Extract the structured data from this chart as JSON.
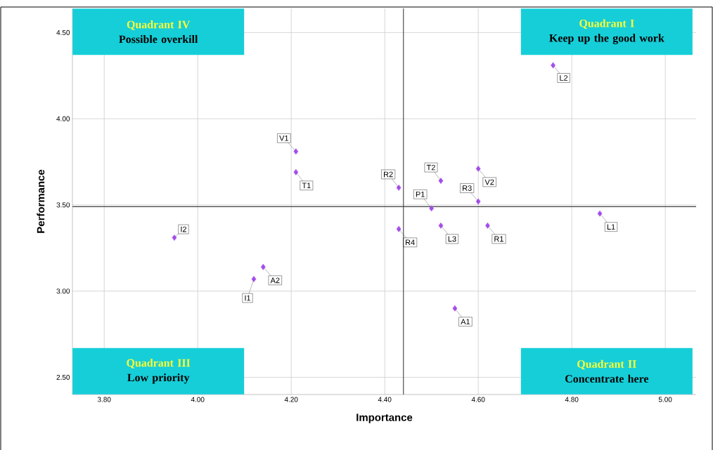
{
  "chart_data": {
    "type": "scatter",
    "xlabel": "Importance",
    "ylabel": "Performance",
    "x": [
      4.76,
      4.21,
      4.21,
      4.43,
      4.52,
      4.6,
      4.6,
      4.5,
      4.52,
      4.62,
      4.43,
      4.86,
      3.95,
      4.14,
      4.12,
      4.55
    ],
    "values": [
      4.31,
      3.81,
      3.69,
      3.6,
      3.64,
      3.71,
      3.52,
      3.48,
      3.38,
      3.38,
      3.36,
      3.45,
      3.31,
      3.14,
      3.07,
      2.9
    ],
    "color": "#a64ff0",
    "marker": "diamond",
    "grid": true,
    "xlim": [
      3.732,
      5.066
    ],
    "ylim": [
      2.4,
      4.64
    ],
    "xticks": [
      {
        "value": 3.8,
        "label": "3.80"
      },
      {
        "value": 4.0,
        "label": "4.00"
      },
      {
        "value": 4.2,
        "label": "4.20"
      },
      {
        "value": 4.4,
        "label": "4.40"
      },
      {
        "value": 4.6,
        "label": "4.60"
      },
      {
        "value": 4.8,
        "label": "4.80"
      },
      {
        "value": 5.0,
        "label": "5.00"
      }
    ],
    "yticks": [
      {
        "value": 2.5,
        "label": "2.50"
      },
      {
        "value": 3.0,
        "label": "3.00"
      },
      {
        "value": 3.5,
        "label": "3.50"
      },
      {
        "value": 4.0,
        "label": "4.00"
      },
      {
        "value": 4.5,
        "label": "4.50"
      }
    ],
    "ref_lines": [
      {
        "axis": "x",
        "value": 4.44,
        "color": "#404040"
      },
      {
        "axis": "y",
        "value": 3.49,
        "color": "#404040"
      }
    ],
    "annotations": [
      "Quadrant  IV",
      "Possible overkill",
      "Quadrant  I",
      "Keep up the good work",
      "Quadrant  III",
      "Low priority",
      "Quadrant  II",
      "Concentrate here",
      {
        "text": "L2",
        "x": 4.76,
        "y": 4.31
      },
      {
        "text": "V1",
        "x": 4.21,
        "y": 3.81
      },
      {
        "text": "T1",
        "x": 4.21,
        "y": 3.69
      },
      {
        "text": "R2",
        "x": 4.43,
        "y": 3.6
      },
      {
        "text": "T2",
        "x": 4.52,
        "y": 3.64
      },
      {
        "text": "V2",
        "x": 4.6,
        "y": 3.71
      },
      {
        "text": "R3",
        "x": 4.6,
        "y": 3.52
      },
      {
        "text": "P1",
        "x": 4.5,
        "y": 3.48
      },
      {
        "text": "L3",
        "x": 4.52,
        "y": 3.38
      },
      {
        "text": "R1",
        "x": 4.62,
        "y": 3.38
      },
      {
        "text": "R4",
        "x": 4.43,
        "y": 3.36
      },
      {
        "text": "L1",
        "x": 4.86,
        "y": 3.45
      },
      {
        "text": "I2",
        "x": 3.95,
        "y": 3.31
      },
      {
        "text": "A2",
        "x": 4.14,
        "y": 3.14
      },
      {
        "text": "I1",
        "x": 4.12,
        "y": 3.07
      },
      {
        "text": "A1",
        "x": 4.55,
        "y": 2.9
      }
    ]
  }
}
